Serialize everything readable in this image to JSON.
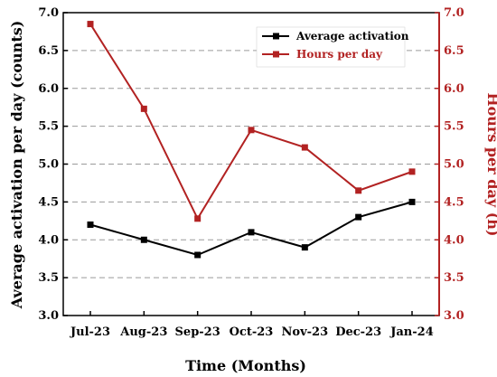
{
  "chart_data": {
    "type": "line",
    "xlabel": "Time (Months)",
    "ylabel": "Average activation per day (counts)",
    "y2label": "Hours per day (h)",
    "categories": [
      "Jul-23",
      "Aug-23",
      "Sep-23",
      "Oct-23",
      "Nov-23",
      "Dec-23",
      "Jan-24"
    ],
    "ylim": [
      3.0,
      7.0
    ],
    "y2lim": [
      3.0,
      7.0
    ],
    "yticks": [
      "3.0",
      "3.5",
      "4.0",
      "4.5",
      "5.0",
      "5.5",
      "6.0",
      "6.5",
      "7.0"
    ],
    "grid": "horizontal dashed",
    "legend_position": "top-right",
    "series": [
      {
        "name": "Average activation",
        "axis": "left",
        "color": "#000000",
        "marker": "square",
        "values": [
          4.2,
          4.0,
          3.8,
          4.1,
          3.9,
          4.3,
          4.5
        ]
      },
      {
        "name": "Hours per day",
        "axis": "right",
        "color": "#b22222",
        "marker": "square",
        "values": [
          6.85,
          5.73,
          4.28,
          5.45,
          5.22,
          4.65,
          4.9
        ]
      }
    ]
  }
}
